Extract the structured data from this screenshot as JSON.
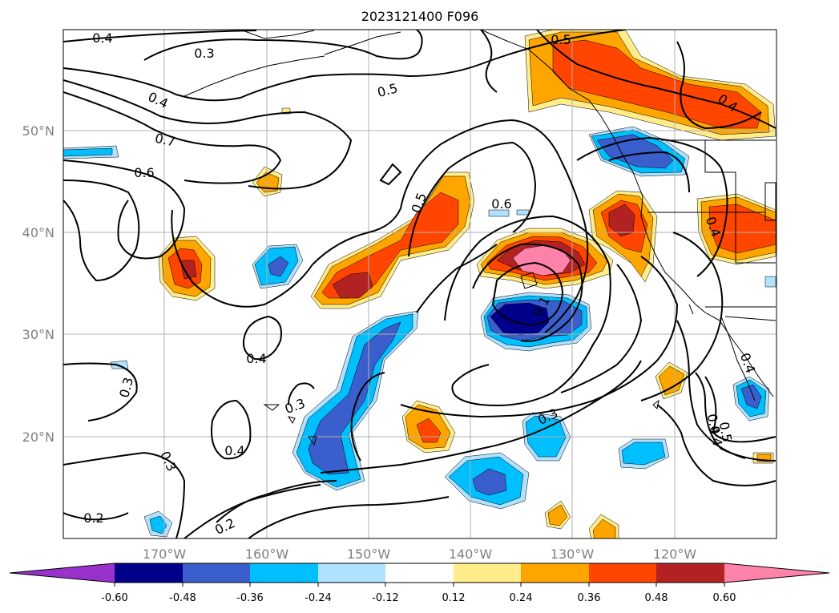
{
  "title": "2023121400 F096",
  "lat_labels": [
    "50°N",
    "40°N",
    "30°N",
    "20°N"
  ],
  "lon_labels": [
    "170°W",
    "160°W",
    "150°W",
    "140°W",
    "130°W",
    "120°W"
  ],
  "contour_labels": [
    "0.4",
    "0.3",
    "0.5",
    "0.4",
    "0.7",
    "0.6",
    "0.5",
    "0.6",
    "0.4",
    "0.4",
    "0.1",
    "0.4",
    "0.3",
    "0.3",
    "0.3",
    "0.4",
    "0.3",
    "0.2",
    "0.2",
    "0.5",
    "0.4",
    "0.4",
    "0.5",
    "0.4"
  ],
  "colorbar": {
    "ticks": [
      "-0.60",
      "-0.48",
      "-0.36",
      "-0.24",
      "-0.12",
      "0.12",
      "0.24",
      "0.36",
      "0.48",
      "0.60"
    ],
    "colors": [
      "#9932cc",
      "#00008b",
      "#3a5fcd",
      "#00bfff",
      "#b0e2ff",
      "#ffffff",
      "#ffec8b",
      "#ffa500",
      "#ff4500",
      "#b22222",
      "#ff82ab"
    ]
  },
  "map": {
    "lat_range": [
      10,
      60
    ],
    "lon_range": [
      -180,
      -110
    ],
    "colors": {
      "neg_strong": "#00008b",
      "neg_mid": "#3a5fcd",
      "neg_weak": "#00bfff",
      "neg_faint": "#b0e2ff",
      "pos_faint": "#ffec8b",
      "pos_weak": "#ffa500",
      "pos_mid": "#ff4500",
      "pos_strong": "#b22222",
      "pos_max": "#ff82ab"
    }
  }
}
